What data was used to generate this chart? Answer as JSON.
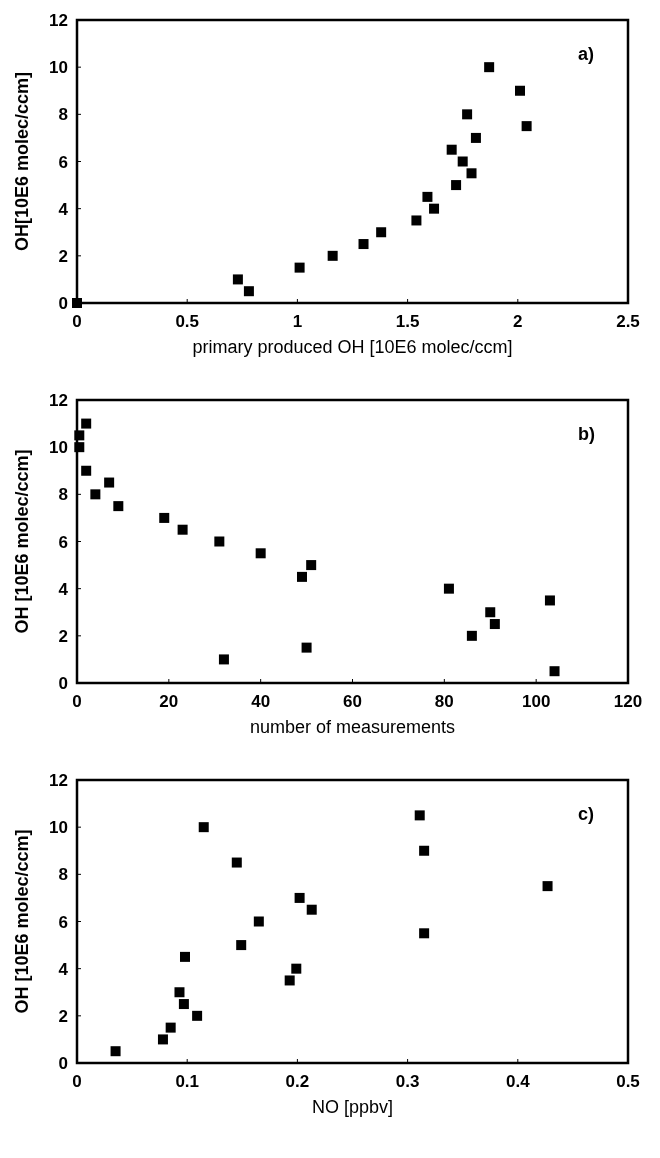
{
  "chart_data": [
    {
      "type": "scatter",
      "xlabel": "primary produced OH [10E6 molec/ccm]",
      "ylabel": "OH[10E6 molec/ccm]",
      "annotations": [
        "a)"
      ],
      "marker": "square",
      "grid": false,
      "xlim": [
        0,
        2.5
      ],
      "xticks": [
        0,
        0.5,
        1,
        1.5,
        2,
        2.5
      ],
      "ylim": [
        0,
        12
      ],
      "yticks": [
        0,
        2,
        4,
        6,
        8,
        10,
        12
      ],
      "series": [
        {
          "color": "#000000",
          "x": [
            0,
            0.73,
            0.78,
            1.01,
            1.16,
            1.3,
            1.38,
            1.54,
            1.59,
            1.62,
            1.7,
            1.72,
            1.75,
            1.77,
            1.79,
            1.81,
            1.87,
            2.01,
            2.04
          ],
          "values": [
            0,
            1,
            0.5,
            1.5,
            2,
            2.5,
            3,
            3.5,
            4.5,
            4,
            6.5,
            5,
            6,
            8,
            5.5,
            7,
            10,
            9,
            7.5
          ]
        }
      ]
    },
    {
      "type": "scatter",
      "xlabel": "number of measurements",
      "ylabel": "OH [10E6 molec/ccm]",
      "annotations": [
        "b)"
      ],
      "marker": "square",
      "grid": false,
      "xlim": [
        0,
        120
      ],
      "xticks": [
        0,
        20,
        40,
        60,
        80,
        100,
        120
      ],
      "ylim": [
        0,
        12
      ],
      "yticks": [
        0,
        2,
        4,
        6,
        8,
        10,
        12
      ],
      "series": [
        {
          "color": "#000000",
          "x": [
            0.5,
            0.5,
            2,
            2,
            4,
            7,
            9,
            19,
            23,
            31,
            32,
            40,
            49,
            50,
            51,
            81,
            86,
            90,
            91,
            103,
            104
          ],
          "values": [
            10.5,
            10,
            11,
            9,
            8,
            8.5,
            7.5,
            7,
            6.5,
            6,
            1,
            5.5,
            4.5,
            1.5,
            5,
            4,
            2,
            3,
            2.5,
            3.5,
            0.5
          ]
        }
      ]
    },
    {
      "type": "scatter",
      "xlabel": "NO [ppbv]",
      "ylabel": "OH [10E6 molec/ccm]",
      "annotations": [
        "c)"
      ],
      "marker": "square",
      "grid": false,
      "xlim": [
        0,
        0.5
      ],
      "xticks": [
        0,
        0.1,
        0.2,
        0.3,
        0.4,
        0.5
      ],
      "ylim": [
        0,
        12
      ],
      "yticks": [
        0,
        2,
        4,
        6,
        8,
        10,
        12
      ],
      "series": [
        {
          "color": "#000000",
          "x": [
            0.035,
            0.078,
            0.085,
            0.093,
            0.097,
            0.098,
            0.109,
            0.115,
            0.145,
            0.149,
            0.165,
            0.193,
            0.199,
            0.202,
            0.213,
            0.311,
            0.315,
            0.315,
            0.427
          ],
          "values": [
            0.5,
            1,
            1.5,
            3,
            2.5,
            4.5,
            2,
            10,
            8.5,
            5,
            6,
            3.5,
            4,
            7,
            6.5,
            10.5,
            9,
            5.5,
            7.5
          ]
        }
      ]
    }
  ]
}
